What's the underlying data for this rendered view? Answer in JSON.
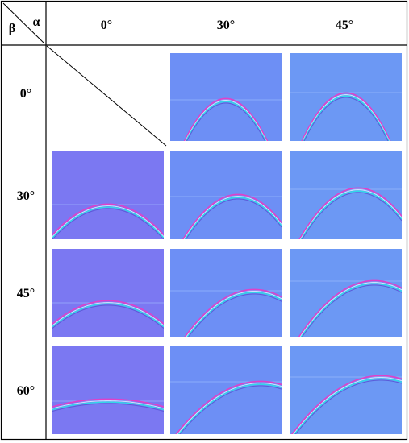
{
  "corner": {
    "beta_symbol": "β",
    "alpha_symbol": "α"
  },
  "alpha_headers": [
    "0°",
    "30°",
    "45°"
  ],
  "beta_labels": [
    "0°",
    "30°",
    "45°",
    "60°"
  ],
  "colors": {
    "panel_bg_0deg": "#7b78f2",
    "panel_bg_30deg": "#6d8ff5",
    "panel_bg_45deg": "#6c98f4",
    "wavefront_magenta": "#e040c8",
    "wavefront_cyan": "#30d8e8",
    "grid_line": "#000000"
  },
  "panels": [
    {
      "beta": "0°",
      "alpha": "30°",
      "present": true
    },
    {
      "beta": "0°",
      "alpha": "45°",
      "present": true
    },
    {
      "beta": "30°",
      "alpha": "0°",
      "present": true
    },
    {
      "beta": "30°",
      "alpha": "30°",
      "present": true
    },
    {
      "beta": "30°",
      "alpha": "45°",
      "present": true
    },
    {
      "beta": "45°",
      "alpha": "0°",
      "present": true
    },
    {
      "beta": "45°",
      "alpha": "30°",
      "present": true
    },
    {
      "beta": "45°",
      "alpha": "45°",
      "present": true
    },
    {
      "beta": "60°",
      "alpha": "0°",
      "present": true
    },
    {
      "beta": "60°",
      "alpha": "30°",
      "present": true
    },
    {
      "beta": "60°",
      "alpha": "45°",
      "present": true
    }
  ]
}
